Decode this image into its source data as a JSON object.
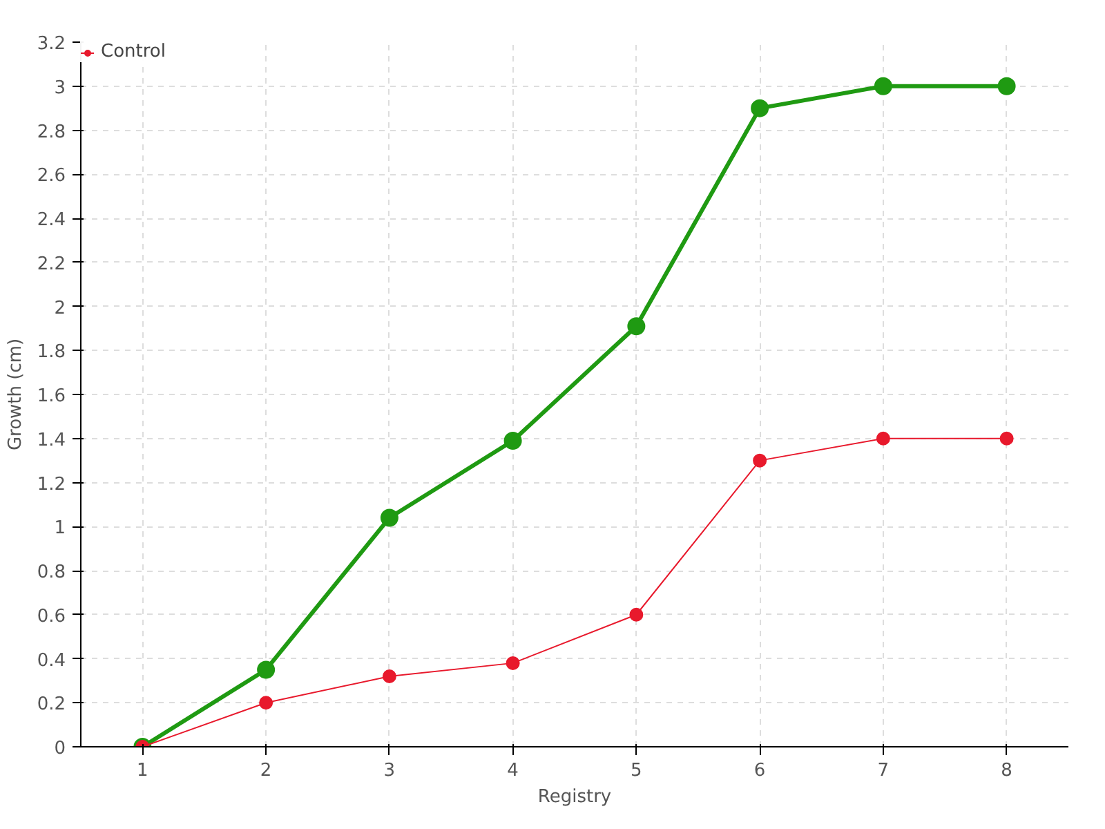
{
  "chart_data": {
    "type": "line",
    "xlabel": "Registry",
    "ylabel": "Growth (cm)",
    "x": [
      1,
      2,
      3,
      4,
      5,
      6,
      7,
      8
    ],
    "xlim": [
      0.5,
      8.5
    ],
    "xticks": [
      1,
      2,
      3,
      4,
      5,
      6,
      7,
      8
    ],
    "ylim": [
      0,
      3.2
    ],
    "yticks": [
      0,
      0.2,
      0.4,
      0.6,
      0.8,
      1,
      1.2,
      1.4,
      1.6,
      1.8,
      2,
      2.2,
      2.4,
      2.6,
      2.8,
      3,
      3.2
    ],
    "grid": true,
    "legend": "top left",
    "marker": "circle",
    "line_style": "solid",
    "series": [
      {
        "color": "#1f9a12",
        "values": [
          0,
          0.35,
          1.04,
          1.39,
          1.91,
          2.9,
          3.0,
          3.0
        ]
      },
      {
        "name": "Control",
        "color": "#e8192c",
        "values": [
          0,
          0.2,
          0.32,
          0.38,
          0.6,
          1.3,
          1.4,
          1.4
        ]
      }
    ]
  }
}
